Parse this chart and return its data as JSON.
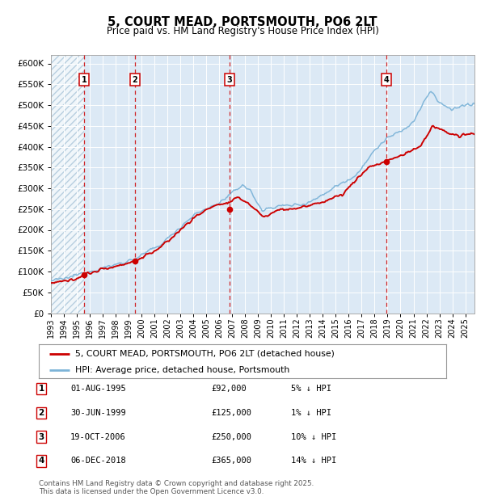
{
  "title": "5, COURT MEAD, PORTSMOUTH, PO6 2LT",
  "subtitle": "Price paid vs. HM Land Registry's House Price Index (HPI)",
  "legend_line1": "5, COURT MEAD, PORTSMOUTH, PO6 2LT (detached house)",
  "legend_line2": "HPI: Average price, detached house, Portsmouth",
  "footer1": "Contains HM Land Registry data © Crown copyright and database right 2025.",
  "footer2": "This data is licensed under the Open Government Licence v3.0.",
  "transactions": [
    {
      "label": "1",
      "date": "01-AUG-1995",
      "price": 92000,
      "pct": "5% ↓ HPI",
      "x": 1995.583
    },
    {
      "label": "2",
      "date": "30-JUN-1999",
      "price": 125000,
      "pct": "1% ↓ HPI",
      "x": 1999.5
    },
    {
      "label": "3",
      "date": "19-OCT-2006",
      "price": 250000,
      "pct": "10% ↓ HPI",
      "x": 2006.8
    },
    {
      "label": "4",
      "date": "06-DEC-2018",
      "price": 365000,
      "pct": "14% ↓ HPI",
      "x": 2018.92
    }
  ],
  "sale_prices": [
    92000,
    125000,
    250000,
    365000
  ],
  "hpi_color": "#7db4d8",
  "price_color": "#cc0000",
  "vline_color": "#cc0000",
  "bg_color": "#dce9f5",
  "hatch_color": "#b8cfe0",
  "ylim": [
    0,
    620000
  ],
  "yticks": [
    0,
    50000,
    100000,
    150000,
    200000,
    250000,
    300000,
    350000,
    400000,
    450000,
    500000,
    550000,
    600000
  ],
  "xlim_start": 1993.0,
  "xlim_end": 2025.7
}
